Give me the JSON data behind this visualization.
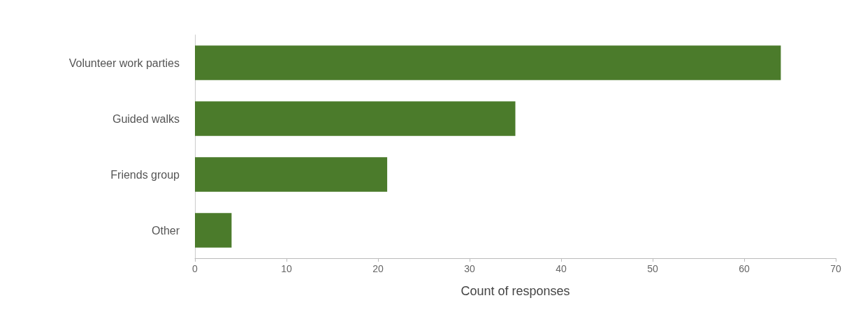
{
  "chart_data": {
    "type": "bar",
    "orientation": "horizontal",
    "xlabel": "Count of responses",
    "categories": [
      "Volunteer work parties",
      "Guided walks",
      "Friends group",
      "Other"
    ],
    "values": [
      64,
      35,
      21,
      4
    ],
    "color": "#4b7b2b",
    "xlim": [
      0,
      70
    ],
    "xticks": [
      0,
      10,
      20,
      30,
      40,
      50,
      60,
      70
    ]
  }
}
